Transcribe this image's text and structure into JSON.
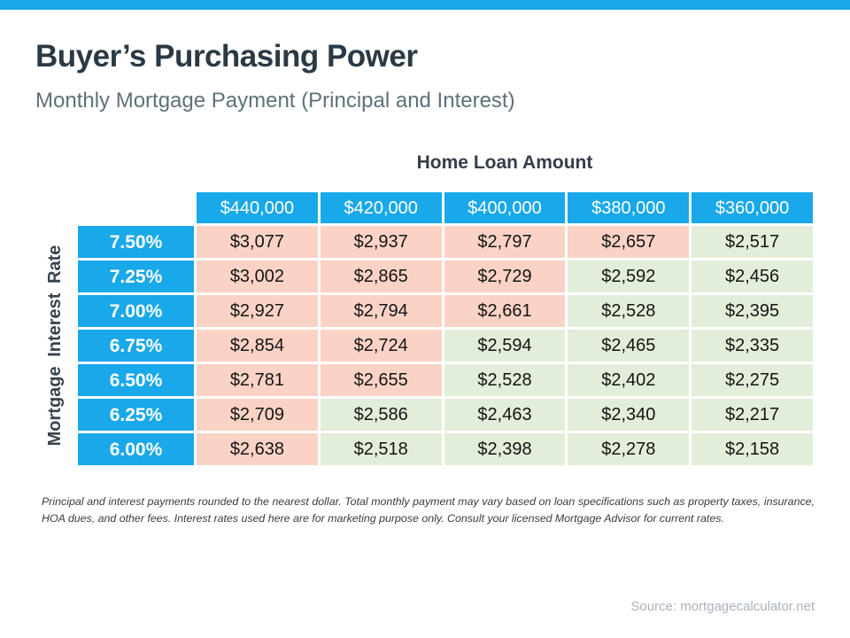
{
  "page": {
    "title": "Buyer’s Purchasing Power",
    "subtitle": "Monthly Mortgage Payment (Principal and Interest)",
    "footnote": "Principal and interest payments rounded to the nearest dollar. Total monthly payment may vary based on loan specifications such as property taxes, insurance, HOA dues, and other fees. Interest rates used here are for marketing purpose only. Consult your licensed Mortgage Advisor for current rates.",
    "source": "Source: mortgagecalculator.net"
  },
  "colors": {
    "accent_blue": "#19A8E9",
    "above_threshold_pink": "#FBD3C6",
    "below_threshold_green": "#E2EED9"
  },
  "chart_data": {
    "type": "table",
    "title": "Buyer’s Purchasing Power",
    "subtitle": "Monthly Mortgage Payment (Principal and Interest)",
    "column_axis_label": "Home Loan Amount",
    "row_axis_label": "Mortgage Interest Rate",
    "columns": [
      "$440,000",
      "$420,000",
      "$400,000",
      "$380,000",
      "$360,000"
    ],
    "rows": [
      {
        "rate": "7.50%",
        "values": [
          "$3,077",
          "$2,937",
          "$2,797",
          "$2,657",
          "$2,517"
        ],
        "tones": [
          "pink",
          "pink",
          "pink",
          "pink",
          "green"
        ]
      },
      {
        "rate": "7.25%",
        "values": [
          "$3,002",
          "$2,865",
          "$2,729",
          "$2,592",
          "$2,456"
        ],
        "tones": [
          "pink",
          "pink",
          "pink",
          "green",
          "green"
        ]
      },
      {
        "rate": "7.00%",
        "values": [
          "$2,927",
          "$2,794",
          "$2,661",
          "$2,528",
          "$2,395"
        ],
        "tones": [
          "pink",
          "pink",
          "pink",
          "green",
          "green"
        ]
      },
      {
        "rate": "6.75%",
        "values": [
          "$2,854",
          "$2,724",
          "$2,594",
          "$2,465",
          "$2,335"
        ],
        "tones": [
          "pink",
          "pink",
          "green",
          "green",
          "green"
        ]
      },
      {
        "rate": "6.50%",
        "values": [
          "$2,781",
          "$2,655",
          "$2,528",
          "$2,402",
          "$2,275"
        ],
        "tones": [
          "pink",
          "pink",
          "green",
          "green",
          "green"
        ]
      },
      {
        "rate": "6.25%",
        "values": [
          "$2,709",
          "$2,586",
          "$2,463",
          "$2,340",
          "$2,217"
        ],
        "tones": [
          "pink",
          "green",
          "green",
          "green",
          "green"
        ]
      },
      {
        "rate": "6.00%",
        "values": [
          "$2,638",
          "$2,518",
          "$2,398",
          "$2,278",
          "$2,158"
        ],
        "tones": [
          "pink",
          "green",
          "green",
          "green",
          "green"
        ]
      }
    ]
  }
}
